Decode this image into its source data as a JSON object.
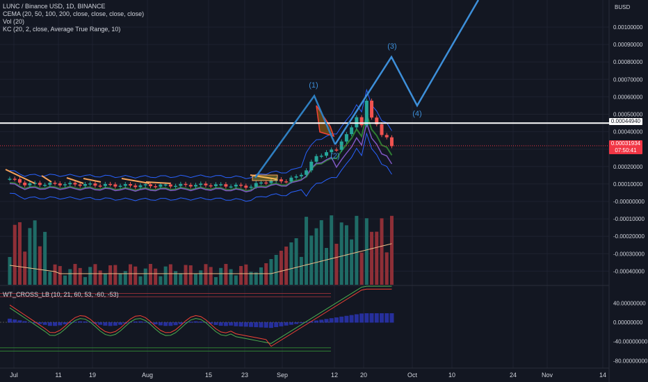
{
  "legend": {
    "symbol": "LUNC / Binance USD, 1D, BINANCE",
    "cema": "CEMA (20, 50, 100, 200, close, close, close, close)",
    "vol": "Vol (20)",
    "kc": "KC (20, 2, close, Average True Range, 10)",
    "oscillator": "WT_CROSS_LB (10, 21, 60, 53, -60, -53)"
  },
  "axis": {
    "currency": "BUSD",
    "price_labels": [
      "0.00100000",
      "0.00090000",
      "0.00080000",
      "0.00070000",
      "0.00060000",
      "0.00050000",
      "0.00040000",
      "0.00030000",
      "0.00020000",
      "0.00010000",
      "-0.00000000",
      "-0.00010000",
      "-0.00020000",
      "-0.00030000",
      "-0.00040000"
    ],
    "osc_labels": [
      "40.00000000",
      "0.00000000",
      "-40.00000000",
      "-80.00000000"
    ],
    "date_labels": [
      "Jul",
      "11",
      "19",
      "Aug",
      "15",
      "23",
      "Sep",
      "12",
      "20",
      "Oct",
      "10",
      "24",
      "Nov",
      "14"
    ]
  },
  "price_tags": {
    "white_line": "0.00044940",
    "current_price": "0.00031934",
    "countdown": "07:50:41"
  },
  "wave_labels": [
    "(1)",
    "(2)",
    "(3)",
    "(4)"
  ],
  "colors": {
    "background": "#131722",
    "up": "#26a69a",
    "down": "#ef5350",
    "wave": "#2f7fc1",
    "projection": "#3d8fd9",
    "white_level": "#ffffff",
    "red_level": "#f23645",
    "kc_band": "#2962ff",
    "volume_ma": "#f0c08a",
    "osc_green": "#4caf50",
    "osc_red": "#f44336",
    "osc_hist": "#2f3bd0"
  },
  "chart_data": {
    "type": "candlestick",
    "title": "LUNC / Binance USD, 1D, BINANCE",
    "ylabel": "BUSD",
    "ylim": [
      -0.00045,
      0.00108
    ],
    "highlighted_levels": [
      0.0004494,
      0.00031934
    ],
    "candles_approx": [
      {
        "date": "Jul (early)",
        "close": 0.0001
      },
      {
        "date": "Aug 23",
        "close": 9e-05
      },
      {
        "date": "Sep (early)",
        "close": 0.00025
      },
      {
        "date": "Sep (peak)",
        "close": 0.00057
      },
      {
        "date": "Sep 12",
        "close": 0.00032
      }
    ],
    "elliott_wave_projection": [
      {
        "label": "(1)",
        "price": 0.0006
      },
      {
        "label": "(2)",
        "price": 0.0003
      },
      {
        "label": "(3)",
        "price": 0.00082
      },
      {
        "label": "(4)",
        "price": 0.00054
      }
    ],
    "oscillator": {
      "name": "WT_CROSS_LB",
      "levels": [
        60,
        53,
        -60,
        -53
      ],
      "ylim": [
        -90,
        55
      ]
    }
  }
}
